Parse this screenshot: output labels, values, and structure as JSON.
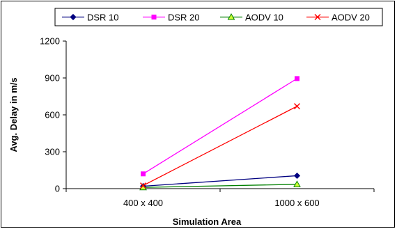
{
  "chart_data": {
    "type": "line",
    "categories": [
      "400 x 400",
      "1000 x 600"
    ],
    "xlabel": "Simulation Area",
    "ylabel": "Avg. Delay in m/s",
    "ylim": [
      0,
      1200
    ],
    "yticks": [
      0,
      300,
      600,
      900,
      1200
    ],
    "grid": false,
    "legend_position": "top",
    "series": [
      {
        "name": "DSR 10",
        "values": [
          20,
          105
        ],
        "color": "#000080",
        "marker": "diamond"
      },
      {
        "name": "DSR 20",
        "values": [
          120,
          895
        ],
        "color": "#FF00FF",
        "marker": "square"
      },
      {
        "name": "AODV 10",
        "values": [
          10,
          35
        ],
        "color": "#008000",
        "marker": "triangle"
      },
      {
        "name": "AODV 20",
        "values": [
          25,
          670
        ],
        "color": "#FF0000",
        "marker": "x"
      }
    ]
  }
}
